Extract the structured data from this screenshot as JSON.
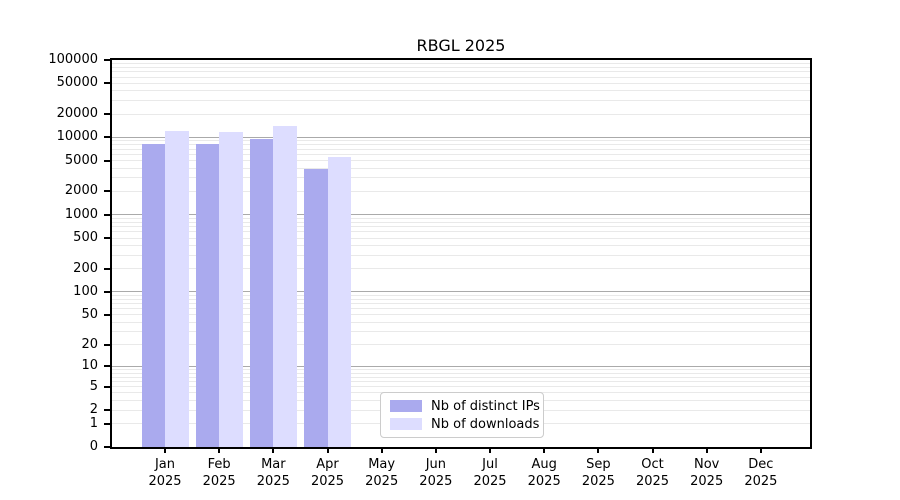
{
  "figure": {
    "title": "RBGL 2025"
  },
  "chart_data": {
    "type": "bar",
    "title": "RBGL 2025",
    "categories": [
      "Jan",
      "Feb",
      "Mar",
      "Apr",
      "May",
      "Jun",
      "Jul",
      "Aug",
      "Sep",
      "Oct",
      "Nov",
      "Dec"
    ],
    "year_label": "2025",
    "series": [
      {
        "name": "Nb of distinct IPs",
        "color": "#aaaaee",
        "values": [
          8150,
          8150,
          9450,
          3900,
          0,
          0,
          0,
          0,
          0,
          0,
          0,
          0
        ]
      },
      {
        "name": "Nb of downloads",
        "color": "#ddddff",
        "values": [
          12200,
          11750,
          14200,
          5500,
          0,
          0,
          0,
          0,
          0,
          0,
          0,
          0
        ]
      }
    ],
    "yscale": "log1p",
    "ylim": [
      0,
      100000
    ],
    "yticks": [
      100000,
      50000,
      20000,
      10000,
      5000,
      2000,
      1000,
      500,
      200,
      100,
      50,
      20,
      10,
      5,
      2,
      1,
      0
    ],
    "grid": {
      "major_ticks": [
        10,
        100,
        1000,
        10000
      ],
      "major_color": "#aaaaaa",
      "minor_color": "#e9e9e9"
    },
    "legend": {
      "position": "lower center",
      "entries": [
        "Nb of distinct IPs",
        "Nb of downloads"
      ]
    },
    "axis_color": "#000000",
    "background_color": "#ffffff"
  }
}
